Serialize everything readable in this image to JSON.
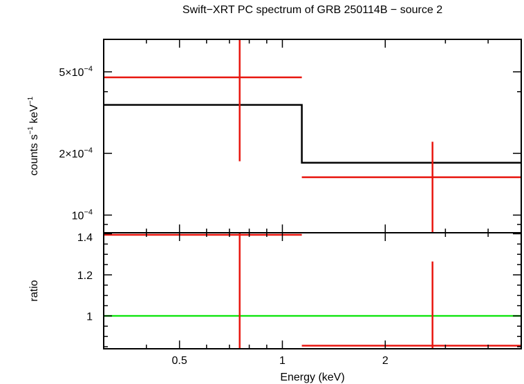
{
  "title": "Swift−XRT PC spectrum of GRB 250114B − source 2",
  "chart_data": [
    {
      "type": "scatter",
      "panel": "spectrum",
      "xlabel": "Energy (keV)",
      "ylabel_main": "counts s",
      "ylabel_exp1": "−1",
      "ylabel_mid": " keV",
      "ylabel_exp2": "−1",
      "x_scale": "log",
      "y_scale": "log",
      "xlim": [
        0.3,
        5.0
      ],
      "ylim": [
        8.2e-05,
        0.00072
      ],
      "y_ticks": [
        {
          "value": 0.0005,
          "mant": "5×10",
          "exp": "−4"
        },
        {
          "value": 0.0002,
          "mant": "2×10",
          "exp": "−4"
        },
        {
          "value": 0.0001,
          "mant": "10",
          "exp": "−4"
        }
      ],
      "series": [
        {
          "kind": "data",
          "color": "#e8150e",
          "points": [
            {
              "x": 0.75,
              "xlo": 0.3,
              "xhi": 1.14,
              "y": 0.00047,
              "ylo": 0.000183,
              "yhi": 0.00072
            },
            {
              "x": 2.75,
              "xlo": 1.14,
              "xhi": 5.0,
              "y": 0.000153,
              "ylo": 8.2e-05,
              "yhi": 0.000228
            }
          ]
        },
        {
          "kind": "model",
          "color": "#000000",
          "steps": [
            {
              "xlo": 0.3,
              "xhi": 1.14,
              "y": 0.000345
            },
            {
              "xlo": 1.14,
              "xhi": 5.0,
              "y": 0.00018
            }
          ]
        }
      ]
    },
    {
      "type": "scatter",
      "panel": "ratio",
      "xlabel": "Energy (keV)",
      "ylabel": "ratio",
      "x_scale": "log",
      "y_scale": "linear",
      "xlim": [
        0.3,
        5.0
      ],
      "ylim": [
        0.84,
        1.405
      ],
      "y_ticks": [
        1.4,
        1.2,
        1
      ],
      "x_ticks": [
        {
          "value": 0.5,
          "label": "0.5"
        },
        {
          "value": 1,
          "label": "1"
        },
        {
          "value": 2,
          "label": "2"
        }
      ],
      "series": [
        {
          "kind": "data",
          "color": "#e8150e",
          "points": [
            {
              "x": 0.75,
              "xlo": 0.3,
              "xhi": 1.14,
              "y": 1.395,
              "ylo": 0.84,
              "yhi": 1.405
            },
            {
              "x": 2.75,
              "xlo": 1.14,
              "xhi": 5.0,
              "y": 0.855,
              "ylo": 0.84,
              "yhi": 1.265
            }
          ]
        },
        {
          "kind": "reference",
          "color": "#19e619",
          "y": 1.0
        }
      ]
    }
  ]
}
